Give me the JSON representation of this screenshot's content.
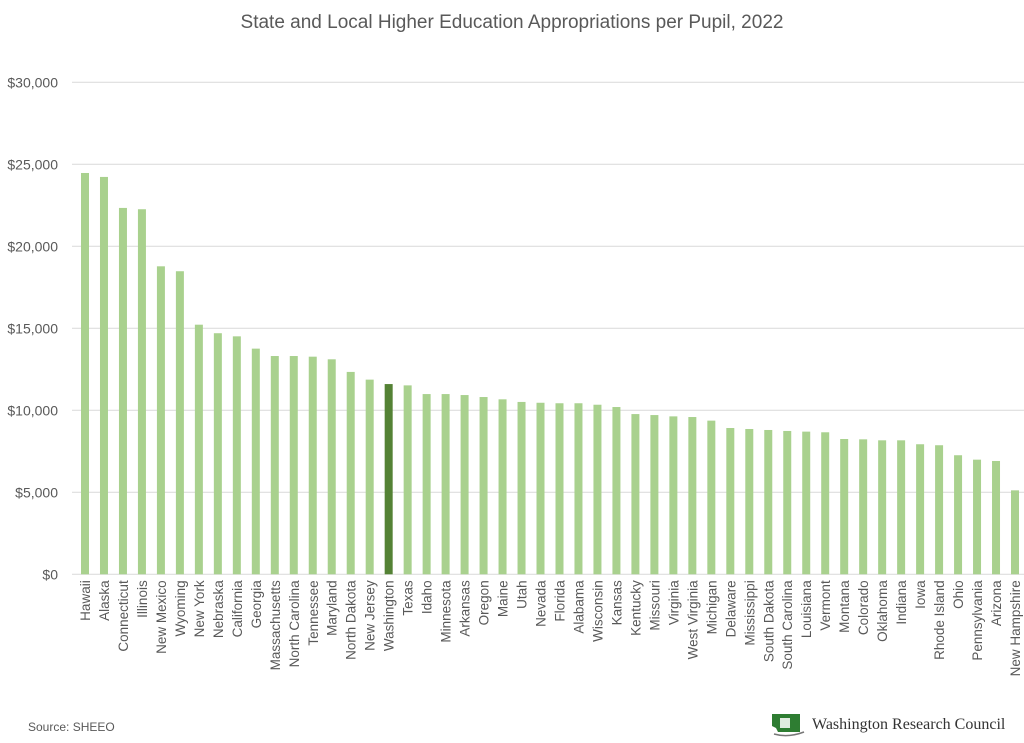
{
  "chart_data": {
    "type": "bar",
    "title": "State and Local Higher Education Appropriations per Pupil, 2022",
    "xlabel": "",
    "ylabel": "",
    "ylim": [
      0,
      30000
    ],
    "yticks": [
      0,
      5000,
      10000,
      15000,
      20000,
      25000,
      30000
    ],
    "ytick_labels": [
      "$0",
      "$5,000",
      "$10,000",
      "$15,000",
      "$20,000",
      "$25,000",
      "$30,000"
    ],
    "grid": true,
    "highlight": "Washington",
    "colors": {
      "bar": "#a9d18e",
      "highlight": "#548235",
      "grid": "#d9d9d9",
      "text": "#595959"
    },
    "categories": [
      "Hawaii",
      "Alaska",
      "Connecticut",
      "Illinois",
      "New Mexico",
      "Wyoming",
      "New York",
      "Nebraska",
      "California",
      "Georgia",
      "Massachusetts",
      "North Carolina",
      "Tennessee",
      "Maryland",
      "North Dakota",
      "New Jersey",
      "Washington",
      "Texas",
      "Idaho",
      "Minnesota",
      "Arkansas",
      "Oregon",
      "Maine",
      "Utah",
      "Nevada",
      "Florida",
      "Alabama",
      "Wisconsin",
      "Kansas",
      "Kentucky",
      "Missouri",
      "Virginia",
      "West Virginia",
      "Michigan",
      "Delaware",
      "Mississippi",
      "South Dakota",
      "South Carolina",
      "Louisiana",
      "Vermont",
      "Montana",
      "Colorado",
      "Oklahoma",
      "Indiana",
      "Iowa",
      "Rhode Island",
      "Ohio",
      "Pennsylvania",
      "Arizona",
      "New Hampshire"
    ],
    "values": [
      24470,
      24230,
      22340,
      22260,
      18780,
      18480,
      15220,
      14700,
      14510,
      13760,
      13310,
      13310,
      13270,
      13110,
      12340,
      11870,
      11600,
      11520,
      10990,
      10990,
      10930,
      10810,
      10670,
      10510,
      10460,
      10430,
      10430,
      10340,
      10200,
      9770,
      9710,
      9630,
      9590,
      9370,
      8920,
      8860,
      8800,
      8740,
      8700,
      8660,
      8250,
      8230,
      8170,
      8170,
      7930,
      7870,
      7260,
      6990,
      6910,
      5120
    ]
  },
  "source": "Source: SHEEO",
  "logo_text": "Washington Research Council"
}
